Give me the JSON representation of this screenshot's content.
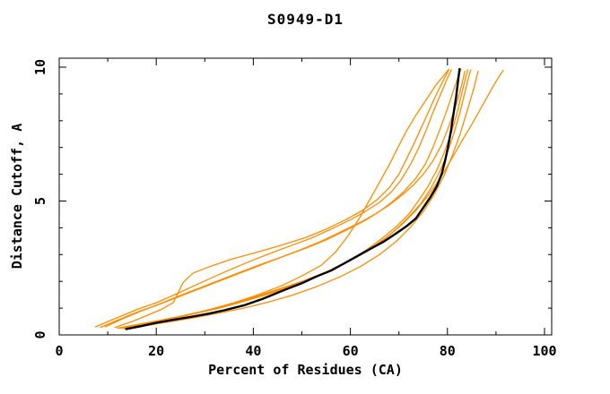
{
  "chart_data": {
    "type": "line",
    "title": "S0949-D1",
    "xlabel": "Percent of Residues (CA)",
    "ylabel": "Distance Cutoff, A",
    "xlim": [
      0,
      100
    ],
    "ylim": [
      0,
      10
    ],
    "x_major_ticks": [
      0,
      20,
      40,
      60,
      80,
      100
    ],
    "x_minor_ticks": [
      10,
      30,
      50,
      70,
      90
    ],
    "y_major_ticks": [
      0,
      5,
      10
    ],
    "y_minor_ticks": [
      1,
      2,
      3,
      4,
      6,
      7,
      8,
      9
    ],
    "grid": false,
    "legend": "none",
    "frame": "box-with-mirrored-inward-ticks",
    "colors": {
      "model_curve": "#ff8c00",
      "target_curve": "#000000",
      "frame": "#000000",
      "background": "#ffffff"
    },
    "series": [
      {
        "name": "model-1",
        "role": "model",
        "color": "#ff8c00",
        "width": 1.3,
        "points": [
          [
            7.5,
            0.3
          ],
          [
            10,
            0.5
          ],
          [
            13,
            0.72
          ],
          [
            16,
            0.95
          ],
          [
            20,
            1.2
          ],
          [
            24,
            1.52
          ],
          [
            28,
            1.85
          ],
          [
            32,
            2.18
          ],
          [
            36,
            2.5
          ],
          [
            40,
            2.8
          ],
          [
            44,
            3.08
          ],
          [
            48,
            3.35
          ],
          [
            52,
            3.62
          ],
          [
            56,
            3.95
          ],
          [
            60,
            4.3
          ],
          [
            63,
            4.6
          ],
          [
            66,
            4.95
          ],
          [
            68.5,
            5.35
          ],
          [
            70.5,
            5.8
          ],
          [
            72.5,
            6.4
          ],
          [
            74,
            6.95
          ],
          [
            75.5,
            7.6
          ],
          [
            77,
            8.3
          ],
          [
            78.5,
            8.95
          ],
          [
            79.8,
            9.5
          ],
          [
            80.8,
            9.9
          ]
        ]
      },
      {
        "name": "model-2",
        "role": "model",
        "color": "#ff8c00",
        "width": 1.3,
        "points": [
          [
            8.5,
            0.28
          ],
          [
            12,
            0.55
          ],
          [
            16,
            0.85
          ],
          [
            20,
            1.1
          ],
          [
            25,
            1.45
          ],
          [
            30,
            1.8
          ],
          [
            35,
            2.15
          ],
          [
            40,
            2.5
          ],
          [
            45,
            2.85
          ],
          [
            50,
            3.2
          ],
          [
            54,
            3.5
          ],
          [
            58,
            3.85
          ],
          [
            62,
            4.2
          ],
          [
            65,
            4.5
          ],
          [
            68,
            4.85
          ],
          [
            70.5,
            5.2
          ],
          [
            73,
            5.6
          ],
          [
            75,
            6.0
          ],
          [
            77,
            6.5
          ],
          [
            78.8,
            7.1
          ],
          [
            80.3,
            7.8
          ],
          [
            81.8,
            8.6
          ],
          [
            82.9,
            9.3
          ],
          [
            83.6,
            9.85
          ]
        ]
      },
      {
        "name": "model-3",
        "role": "model",
        "color": "#ff8c00",
        "width": 1.3,
        "points": [
          [
            11.5,
            0.28
          ],
          [
            15,
            0.5
          ],
          [
            18,
            0.72
          ],
          [
            21,
            0.95
          ],
          [
            23.5,
            1.2
          ],
          [
            25.5,
            1.95
          ],
          [
            27.5,
            2.3
          ],
          [
            31,
            2.55
          ],
          [
            35,
            2.8
          ],
          [
            39,
            3.0
          ],
          [
            43,
            3.2
          ],
          [
            47,
            3.42
          ],
          [
            51,
            3.65
          ],
          [
            55,
            3.95
          ],
          [
            59,
            4.3
          ],
          [
            62.5,
            4.65
          ],
          [
            65.5,
            5.05
          ],
          [
            68,
            5.5
          ],
          [
            70,
            6.0
          ],
          [
            71.5,
            6.55
          ],
          [
            73,
            7.1
          ],
          [
            74.5,
            7.7
          ],
          [
            76,
            8.3
          ],
          [
            77.5,
            8.9
          ],
          [
            79,
            9.45
          ],
          [
            80.2,
            9.88
          ]
        ]
      },
      {
        "name": "model-4",
        "role": "model",
        "color": "#ff8c00",
        "width": 1.3,
        "points": [
          [
            13,
            0.25
          ],
          [
            17,
            0.4
          ],
          [
            21,
            0.55
          ],
          [
            26,
            0.72
          ],
          [
            31,
            0.95
          ],
          [
            36,
            1.2
          ],
          [
            41,
            1.5
          ],
          [
            46,
            1.85
          ],
          [
            50,
            2.2
          ],
          [
            54,
            2.6
          ],
          [
            57,
            3.1
          ],
          [
            59.5,
            3.7
          ],
          [
            62,
            4.4
          ],
          [
            64,
            5.05
          ],
          [
            66,
            5.7
          ],
          [
            68,
            6.35
          ],
          [
            69.8,
            7.0
          ],
          [
            71.5,
            7.6
          ],
          [
            73.5,
            8.2
          ],
          [
            75.5,
            8.75
          ],
          [
            77.5,
            9.3
          ],
          [
            79.5,
            9.75
          ],
          [
            80.3,
            9.92
          ]
        ]
      },
      {
        "name": "model-5",
        "role": "model",
        "color": "#ff8c00",
        "width": 1.3,
        "points": [
          [
            12.5,
            0.25
          ],
          [
            16,
            0.38
          ],
          [
            20,
            0.52
          ],
          [
            25,
            0.7
          ],
          [
            30,
            0.9
          ],
          [
            35,
            1.12
          ],
          [
            40,
            1.4
          ],
          [
            45,
            1.7
          ],
          [
            50,
            2.0
          ],
          [
            55,
            2.35
          ],
          [
            59,
            2.7
          ],
          [
            63,
            3.1
          ],
          [
            66.5,
            3.5
          ],
          [
            69.5,
            3.95
          ],
          [
            72,
            4.4
          ],
          [
            74.5,
            4.9
          ],
          [
            76.5,
            5.45
          ],
          [
            78.3,
            6.05
          ],
          [
            79.8,
            6.7
          ],
          [
            81.2,
            7.45
          ],
          [
            82.5,
            8.25
          ],
          [
            83.6,
            9.05
          ],
          [
            84.4,
            9.65
          ],
          [
            84.8,
            9.9
          ]
        ]
      },
      {
        "name": "model-6",
        "role": "model",
        "color": "#ff8c00",
        "width": 1.3,
        "points": [
          [
            13.5,
            0.22
          ],
          [
            18,
            0.35
          ],
          [
            23,
            0.5
          ],
          [
            28,
            0.65
          ],
          [
            33,
            0.82
          ],
          [
            38,
            1.0
          ],
          [
            43,
            1.22
          ],
          [
            48,
            1.48
          ],
          [
            53,
            1.8
          ],
          [
            58,
            2.18
          ],
          [
            62,
            2.55
          ],
          [
            66,
            3.0
          ],
          [
            69.5,
            3.5
          ],
          [
            72.5,
            4.05
          ],
          [
            75,
            4.6
          ],
          [
            77.3,
            5.25
          ],
          [
            79.3,
            5.95
          ],
          [
            81,
            6.7
          ],
          [
            82.7,
            7.55
          ],
          [
            84.2,
            8.45
          ],
          [
            85.5,
            9.25
          ],
          [
            86.3,
            9.85
          ]
        ]
      },
      {
        "name": "model-7",
        "role": "model",
        "color": "#ff8c00",
        "width": 1.3,
        "points": [
          [
            12,
            0.25
          ],
          [
            16.5,
            0.4
          ],
          [
            21,
            0.55
          ],
          [
            26,
            0.72
          ],
          [
            31,
            0.92
          ],
          [
            36,
            1.15
          ],
          [
            41,
            1.42
          ],
          [
            46,
            1.72
          ],
          [
            51,
            2.05
          ],
          [
            56,
            2.42
          ],
          [
            60,
            2.78
          ],
          [
            64,
            3.2
          ],
          [
            67.5,
            3.65
          ],
          [
            70.5,
            4.1
          ],
          [
            73.5,
            4.65
          ],
          [
            76,
            5.2
          ],
          [
            78.5,
            5.85
          ],
          [
            80.8,
            6.55
          ],
          [
            83,
            7.25
          ],
          [
            85.3,
            7.95
          ],
          [
            87.3,
            8.6
          ],
          [
            89.3,
            9.25
          ],
          [
            90.8,
            9.7
          ],
          [
            91.5,
            9.88
          ]
        ]
      },
      {
        "name": "model-8",
        "role": "model",
        "color": "#ff8c00",
        "width": 1.3,
        "points": [
          [
            13.2,
            0.25
          ],
          [
            18,
            0.42
          ],
          [
            23,
            0.6
          ],
          [
            28,
            0.8
          ],
          [
            33,
            1.0
          ],
          [
            38,
            1.25
          ],
          [
            43,
            1.52
          ],
          [
            48,
            1.82
          ],
          [
            52,
            2.1
          ],
          [
            56,
            2.42
          ],
          [
            60,
            2.8
          ],
          [
            63.5,
            3.2
          ],
          [
            66.5,
            3.6
          ],
          [
            69.5,
            4.05
          ],
          [
            72,
            4.5
          ],
          [
            74,
            5.0
          ],
          [
            76,
            5.55
          ],
          [
            77.8,
            6.15
          ],
          [
            79.3,
            6.8
          ],
          [
            80.8,
            7.55
          ],
          [
            82,
            8.3
          ],
          [
            83,
            9.05
          ],
          [
            83.8,
            9.65
          ],
          [
            84.2,
            9.9
          ]
        ]
      },
      {
        "name": "model-9",
        "role": "model",
        "color": "#ff8c00",
        "width": 1.3,
        "points": [
          [
            9.5,
            0.3
          ],
          [
            13,
            0.6
          ],
          [
            17,
            0.9
          ],
          [
            21,
            1.18
          ],
          [
            26,
            1.55
          ],
          [
            31,
            1.9
          ],
          [
            36,
            2.25
          ],
          [
            41,
            2.6
          ],
          [
            46,
            2.92
          ],
          [
            51,
            3.25
          ],
          [
            55,
            3.55
          ],
          [
            59,
            3.9
          ],
          [
            62.5,
            4.22
          ],
          [
            65.5,
            4.55
          ],
          [
            68.5,
            4.95
          ],
          [
            71,
            5.35
          ],
          [
            73.5,
            5.85
          ],
          [
            75.5,
            6.4
          ],
          [
            77,
            7.0
          ],
          [
            78.5,
            7.7
          ],
          [
            80,
            8.45
          ],
          [
            81.3,
            9.15
          ],
          [
            82.3,
            9.7
          ],
          [
            82.8,
            9.92
          ]
        ]
      },
      {
        "name": "target",
        "role": "target",
        "color": "#000000",
        "width": 2.4,
        "points": [
          [
            13.8,
            0.22
          ],
          [
            17,
            0.33
          ],
          [
            20,
            0.45
          ],
          [
            24,
            0.58
          ],
          [
            28,
            0.7
          ],
          [
            31,
            0.8
          ],
          [
            34,
            0.92
          ],
          [
            38,
            1.1
          ],
          [
            42,
            1.35
          ],
          [
            46,
            1.65
          ],
          [
            50,
            1.93
          ],
          [
            53,
            2.18
          ],
          [
            56,
            2.4
          ],
          [
            59,
            2.7
          ],
          [
            62,
            3.0
          ],
          [
            64.5,
            3.25
          ],
          [
            67,
            3.5
          ],
          [
            69.5,
            3.8
          ],
          [
            71.5,
            4.05
          ],
          [
            73.5,
            4.35
          ],
          [
            75,
            4.75
          ],
          [
            76.5,
            5.15
          ],
          [
            77.8,
            5.55
          ],
          [
            78.8,
            6.0
          ],
          [
            79.5,
            6.5
          ],
          [
            80.1,
            7.0
          ],
          [
            80.7,
            7.6
          ],
          [
            81.2,
            8.2
          ],
          [
            81.8,
            8.9
          ],
          [
            82.2,
            9.5
          ],
          [
            82.5,
            9.93
          ]
        ]
      }
    ]
  }
}
